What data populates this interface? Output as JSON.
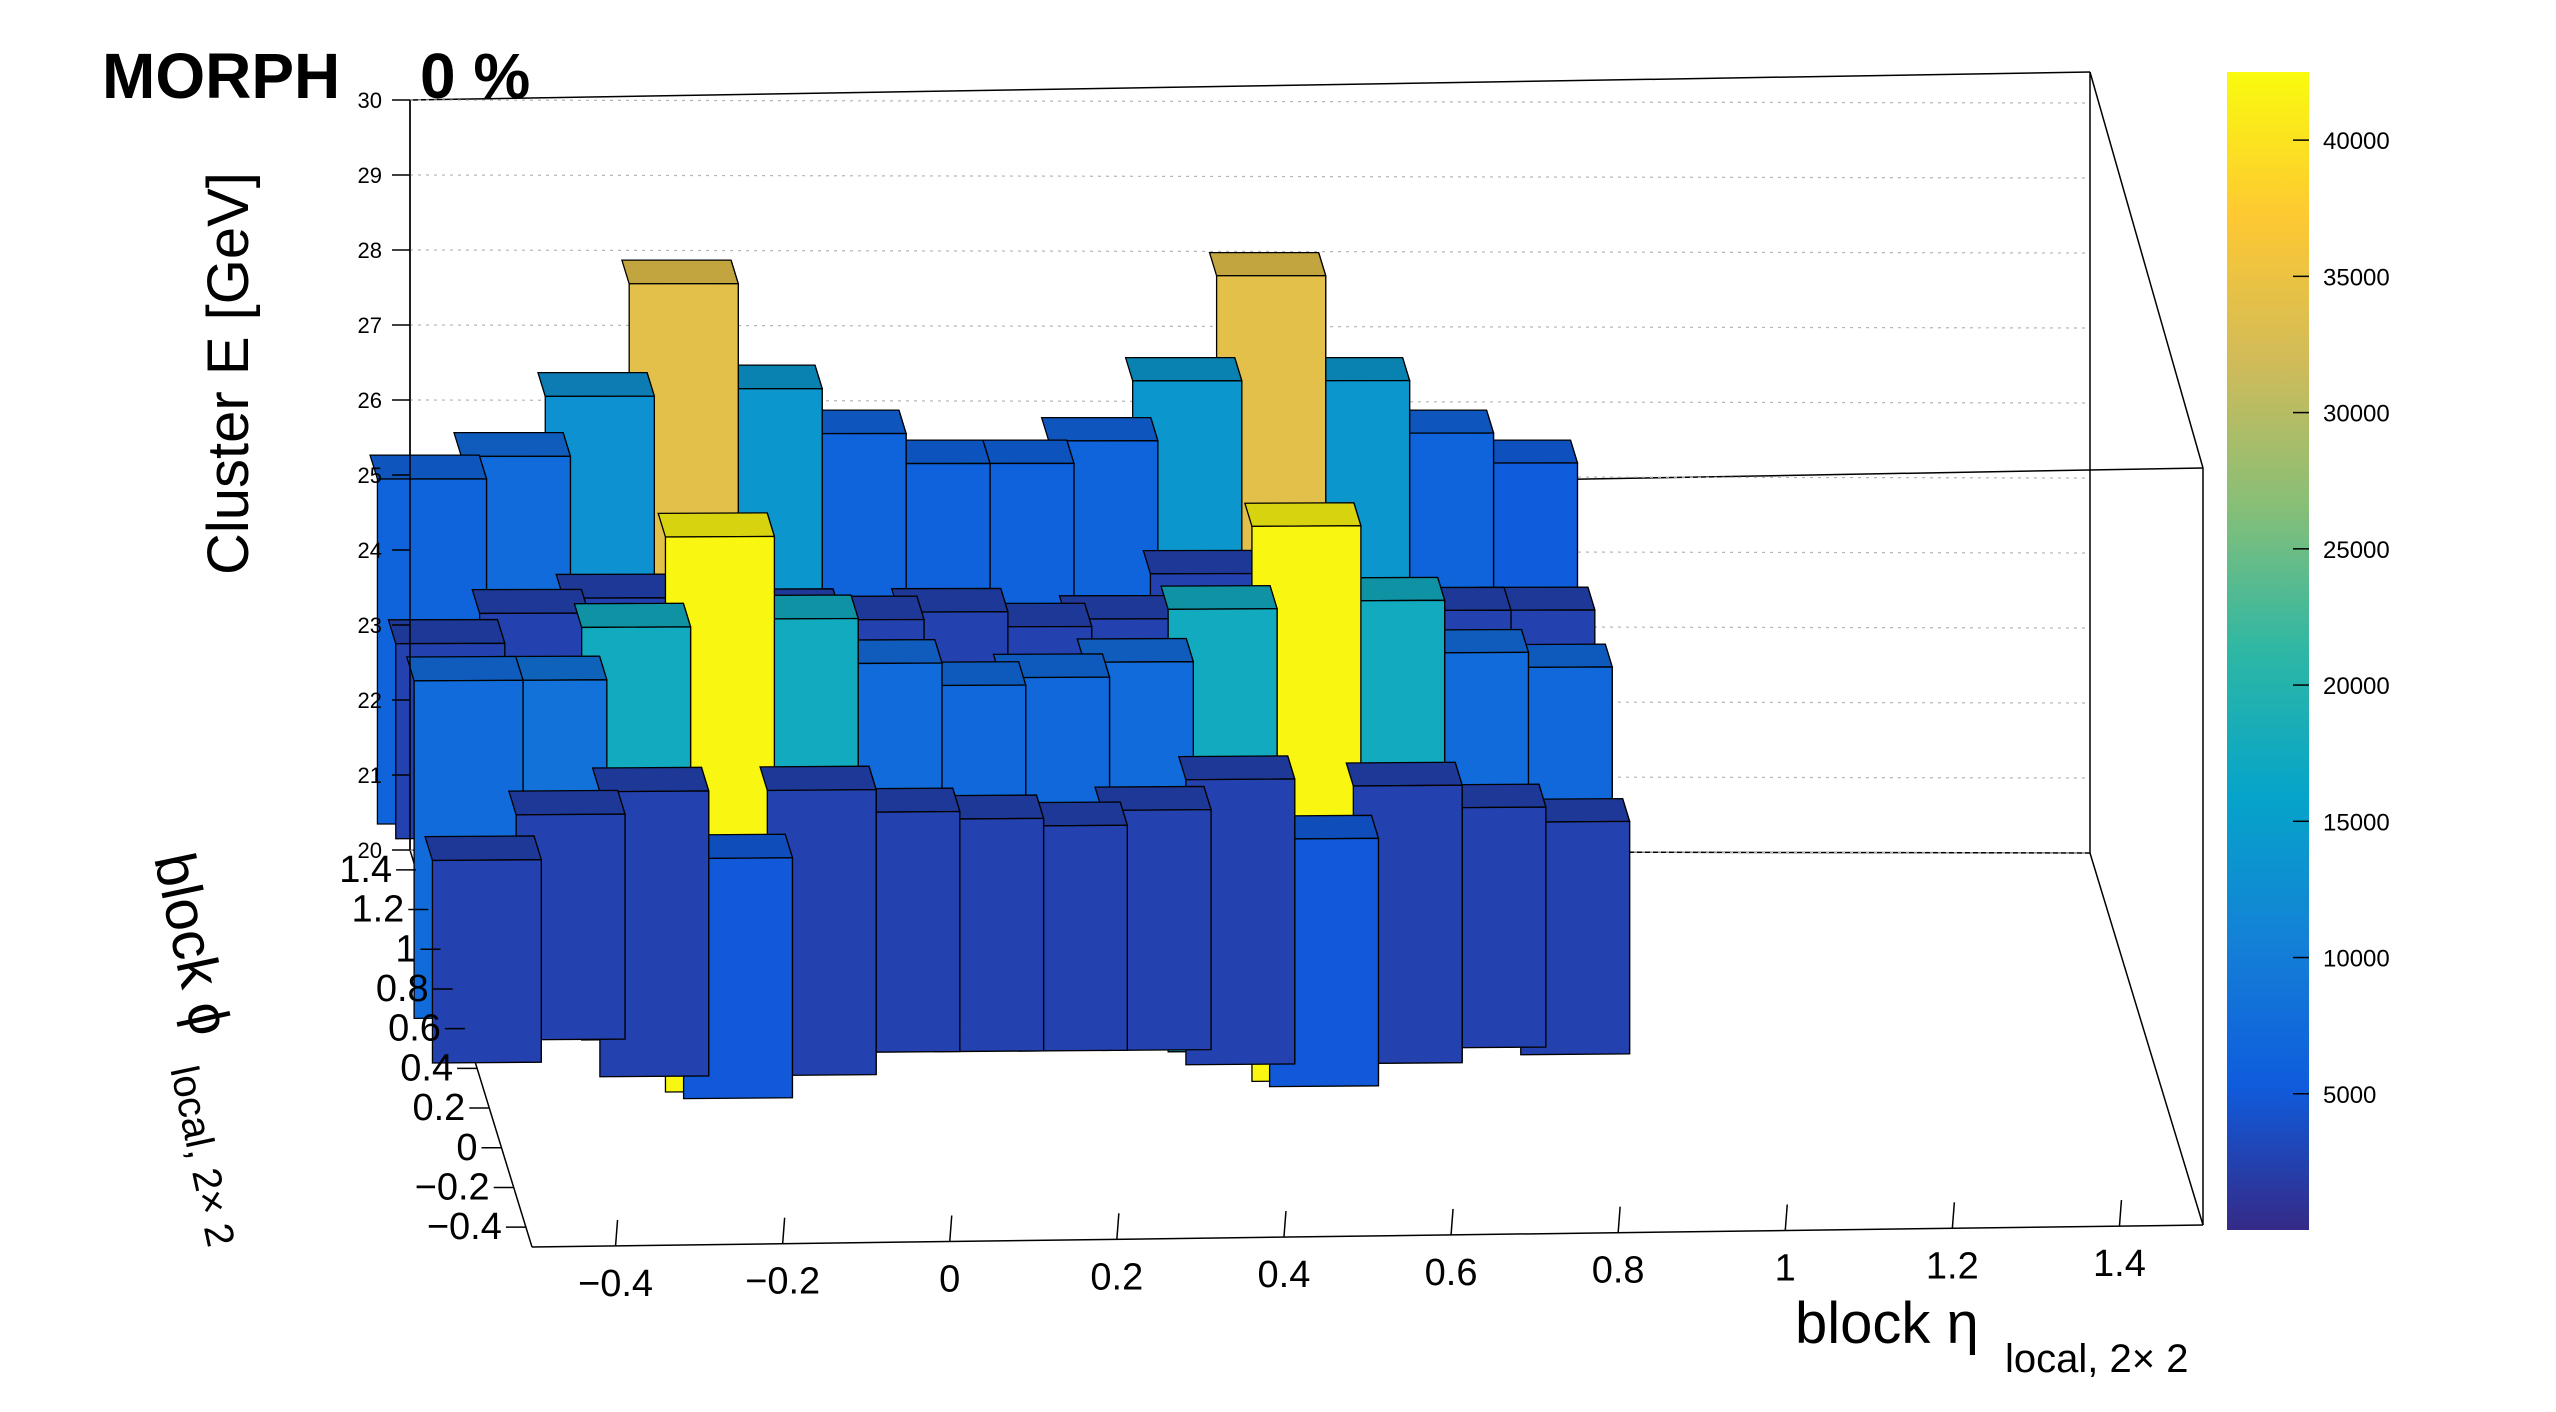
{
  "chart_data": {
    "type": "bar3d",
    "title": "MORPH",
    "progress": "0 %",
    "xlabel": "block η",
    "xlabel_sub": "local, 2× 2",
    "ylabel": "block ϕ",
    "ylabel_sub": "local, 2× 2",
    "zlabel": "Cluster E  [GeV]",
    "x_ticks": [
      "−0.4",
      "−0.2",
      "0",
      "0.2",
      "0.4",
      "0.6",
      "0.8",
      "1",
      "1.2",
      "1.4"
    ],
    "y_ticks": [
      "−0.4",
      "−0.2",
      "0",
      "0.2",
      "0.4",
      "0.6",
      "0.8",
      "1",
      "1.2",
      "1.4"
    ],
    "z_ticks": [
      "20",
      "21",
      "22",
      "23",
      "24",
      "25",
      "26",
      "27",
      "28",
      "29",
      "30"
    ],
    "z_range": [
      20,
      30
    ],
    "colorbar_ticks": [
      "5000",
      "10000",
      "15000",
      "20000",
      "25000",
      "30000",
      "35000",
      "40000"
    ],
    "colorbar_range": [
      0,
      42500
    ],
    "colorbar_stops": [
      "#352a87",
      "#0f5cdd",
      "#1481d6",
      "#06a4ca",
      "#2eb7a4",
      "#87bf77",
      "#d1bb59",
      "#fec832",
      "#f9fb0e"
    ],
    "bars": [
      {
        "eta": -0.5,
        "phi": 1.2,
        "zlow": 21.3,
        "zhigh": 25.9,
        "count": 6500
      },
      {
        "eta": -0.4,
        "phi": 1.2,
        "zlow": 21.6,
        "zhigh": 26.2,
        "count": 7500
      },
      {
        "eta": -0.3,
        "phi": 1.2,
        "zlow": 21.2,
        "zhigh": 27.0,
        "count": 13000
      },
      {
        "eta": -0.2,
        "phi": 1.2,
        "zlow": 20.3,
        "zhigh": 28.5,
        "count": 34000
      },
      {
        "eta": -0.1,
        "phi": 1.2,
        "zlow": 21.3,
        "zhigh": 27.1,
        "count": 14000
      },
      {
        "eta": 0.0,
        "phi": 1.2,
        "zlow": 21.4,
        "zhigh": 26.5,
        "count": 6500
      },
      {
        "eta": 0.1,
        "phi": 1.2,
        "zlow": 21.4,
        "zhigh": 26.1,
        "count": 6000
      },
      {
        "eta": 0.2,
        "phi": 1.2,
        "zlow": 21.4,
        "zhigh": 26.1,
        "count": 6000
      },
      {
        "eta": 0.3,
        "phi": 1.2,
        "zlow": 21.3,
        "zhigh": 26.4,
        "count": 6500
      },
      {
        "eta": 0.4,
        "phi": 1.2,
        "zlow": 21.2,
        "zhigh": 27.2,
        "count": 14000
      },
      {
        "eta": 0.5,
        "phi": 1.2,
        "zlow": 20.5,
        "zhigh": 28.6,
        "count": 34000
      },
      {
        "eta": 0.6,
        "phi": 1.2,
        "zlow": 21.2,
        "zhigh": 27.2,
        "count": 14000
      },
      {
        "eta": 0.7,
        "phi": 1.2,
        "zlow": 21.4,
        "zhigh": 26.5,
        "count": 6500
      },
      {
        "eta": 0.8,
        "phi": 1.2,
        "zlow": 21.3,
        "zhigh": 26.1,
        "count": 5500
      },
      {
        "eta": -0.5,
        "phi": 0.6,
        "zlow": 20.3,
        "zhigh": 24.8,
        "count": 7500
      },
      {
        "eta": -0.4,
        "phi": 0.6,
        "zlow": 20.3,
        "zhigh": 24.8,
        "count": 8500
      },
      {
        "eta": -0.3,
        "phi": 0.6,
        "zlow": 20.0,
        "zhigh": 25.5,
        "count": 17500
      },
      {
        "eta": -0.2,
        "phi": 0.6,
        "zlow": 19.3,
        "zhigh": 26.7,
        "count": 42000
      },
      {
        "eta": -0.1,
        "phi": 0.6,
        "zlow": 19.8,
        "zhigh": 25.6,
        "count": 17500
      },
      {
        "eta": 0.0,
        "phi": 0.6,
        "zlow": 20.2,
        "zhigh": 25.0,
        "count": 7500
      },
      {
        "eta": 0.1,
        "phi": 0.6,
        "zlow": 20.2,
        "zhigh": 24.7,
        "count": 7000
      },
      {
        "eta": 0.2,
        "phi": 0.6,
        "zlow": 20.3,
        "zhigh": 24.8,
        "count": 7000
      },
      {
        "eta": 0.3,
        "phi": 0.6,
        "zlow": 20.1,
        "zhigh": 25.0,
        "count": 7500
      },
      {
        "eta": 0.4,
        "phi": 0.6,
        "zlow": 19.8,
        "zhigh": 25.7,
        "count": 17500
      },
      {
        "eta": 0.5,
        "phi": 0.6,
        "zlow": 19.4,
        "zhigh": 26.8,
        "count": 42000
      },
      {
        "eta": 0.6,
        "phi": 0.6,
        "zlow": 19.8,
        "zhigh": 25.8,
        "count": 17500
      },
      {
        "eta": 0.7,
        "phi": 0.6,
        "zlow": 20.0,
        "zhigh": 25.1,
        "count": 7500
      },
      {
        "eta": 0.8,
        "phi": 0.6,
        "zlow": 20.0,
        "zhigh": 24.9,
        "count": 7000
      },
      {
        "eta": -0.5,
        "phi": 0.9,
        "zlow": 21.9,
        "zhigh": 24.5,
        "count": 2500
      },
      {
        "eta": -0.4,
        "phi": 0.9,
        "zlow": 22.0,
        "zhigh": 24.9,
        "count": 2500
      },
      {
        "eta": -0.3,
        "phi": 0.9,
        "zlow": 21.5,
        "zhigh": 25.1,
        "count": 2500
      },
      {
        "eta": -0.2,
        "phi": 0.9,
        "zlow": 21.1,
        "zhigh": 23.9,
        "count": 2500
      },
      {
        "eta": -0.1,
        "phi": 0.9,
        "zlow": 21.4,
        "zhigh": 24.9,
        "count": 2500
      },
      {
        "eta": 0.0,
        "phi": 0.9,
        "zlow": 21.6,
        "zhigh": 24.8,
        "count": 2500
      },
      {
        "eta": 0.1,
        "phi": 0.9,
        "zlow": 21.6,
        "zhigh": 24.9,
        "count": 2500
      },
      {
        "eta": 0.2,
        "phi": 0.9,
        "zlow": 21.6,
        "zhigh": 24.7,
        "count": 2500
      },
      {
        "eta": 0.3,
        "phi": 0.9,
        "zlow": 21.5,
        "zhigh": 24.8,
        "count": 2500
      },
      {
        "eta": 0.4,
        "phi": 0.9,
        "zlow": 21.3,
        "zhigh": 25.4,
        "count": 2500
      },
      {
        "eta": 0.5,
        "phi": 0.9,
        "zlow": 21.1,
        "zhigh": 24.1,
        "count": 2500
      },
      {
        "eta": 0.6,
        "phi": 0.9,
        "zlow": 21.3,
        "zhigh": 24.9,
        "count": 2500
      },
      {
        "eta": 0.7,
        "phi": 0.9,
        "zlow": 21.6,
        "zhigh": 24.9,
        "count": 2500
      },
      {
        "eta": 0.8,
        "phi": 0.9,
        "zlow": 21.6,
        "zhigh": 24.9,
        "count": 2500
      },
      {
        "eta": -0.5,
        "phi": 0.3,
        "zlow": 20.5,
        "zhigh": 23.2,
        "count": 2500
      },
      {
        "eta": -0.4,
        "phi": 0.3,
        "zlow": 20.8,
        "zhigh": 23.8,
        "count": 2500
      },
      {
        "eta": -0.3,
        "phi": 0.3,
        "zlow": 20.3,
        "zhigh": 24.1,
        "count": 2500
      },
      {
        "eta": -0.2,
        "phi": 0.3,
        "zlow": 20.0,
        "zhigh": 23.2,
        "count": 5000
      },
      {
        "eta": -0.1,
        "phi": 0.3,
        "zlow": 20.3,
        "zhigh": 24.1,
        "count": 2500
      },
      {
        "eta": 0.0,
        "phi": 0.3,
        "zlow": 20.6,
        "zhigh": 23.8,
        "count": 2500
      },
      {
        "eta": 0.1,
        "phi": 0.3,
        "zlow": 20.6,
        "zhigh": 23.7,
        "count": 2500
      },
      {
        "eta": 0.2,
        "phi": 0.3,
        "zlow": 20.6,
        "zhigh": 23.6,
        "count": 2500
      },
      {
        "eta": 0.3,
        "phi": 0.3,
        "zlow": 20.6,
        "zhigh": 23.8,
        "count": 2500
      },
      {
        "eta": 0.4,
        "phi": 0.3,
        "zlow": 20.4,
        "zhigh": 24.2,
        "count": 2500
      },
      {
        "eta": 0.5,
        "phi": 0.3,
        "zlow": 20.1,
        "zhigh": 23.4,
        "count": 5000
      },
      {
        "eta": 0.6,
        "phi": 0.3,
        "zlow": 20.4,
        "zhigh": 24.1,
        "count": 2500
      },
      {
        "eta": 0.7,
        "phi": 0.3,
        "zlow": 20.6,
        "zhigh": 23.8,
        "count": 2500
      },
      {
        "eta": 0.8,
        "phi": 0.3,
        "zlow": 20.5,
        "zhigh": 23.6,
        "count": 2500
      }
    ]
  }
}
